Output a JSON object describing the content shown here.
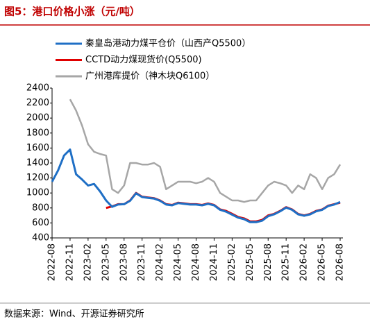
{
  "chart_data": {
    "type": "line",
    "title": "图5：港口价格小涨（元/吨）",
    "source": "数据来源：Wind、开源证券研究所",
    "categories": [
      "2022-08",
      null,
      null,
      "2022-11",
      null,
      null,
      "2023-02",
      null,
      null,
      "2023-05",
      null,
      null,
      "2023-08",
      null,
      null,
      "2023-11",
      null,
      null,
      "2024-02",
      null,
      null,
      "2024-05",
      null,
      null,
      "2024-08",
      null,
      null,
      "2024-11",
      null,
      null,
      "2025-02",
      null,
      null,
      "2025-05",
      null,
      null,
      "2025-08",
      null,
      null,
      "2025-11",
      null,
      null,
      "2026-02",
      null,
      null,
      "2026-05",
      null,
      null,
      "2026-08"
    ],
    "series": [
      {
        "name": "广州港库提价（神木块Q6100）",
        "color": "#a6a6a6",
        "values": [
          null,
          null,
          null,
          2250,
          2100,
          1900,
          1650,
          1550,
          1520,
          1500,
          1050,
          1000,
          1100,
          1400,
          1400,
          1380,
          1380,
          1400,
          1350,
          1050,
          1100,
          1150,
          1150,
          1150,
          1130,
          1150,
          1200,
          1150,
          1000,
          950,
          900,
          900,
          880,
          900,
          900,
          1000,
          1100,
          1150,
          1130,
          1100,
          1000,
          1100,
          1050,
          1250,
          1200,
          1050,
          1200,
          1250,
          1380
        ]
      },
      {
        "name": "CCTD动力煤现货价(Q5500)",
        "color": "#e00000",
        "values": [
          null,
          null,
          null,
          null,
          null,
          null,
          null,
          null,
          null,
          800,
          820,
          850,
          850,
          900,
          1000,
          950,
          940,
          930,
          900,
          850,
          840,
          870,
          860,
          850,
          850,
          840,
          860,
          840,
          780,
          760,
          720,
          680,
          660,
          620,
          620,
          640,
          700,
          720,
          760,
          810,
          780,
          720,
          700,
          720,
          760,
          780,
          830,
          850,
          870
        ]
      },
      {
        "name": "秦皇岛港动力煤平仓价（山西产Q5500）",
        "color": "#1f6fc5",
        "values": [
          1150,
          1300,
          1500,
          1580,
          1250,
          1180,
          1100,
          1120,
          1020,
          900,
          815,
          845,
          850,
          895,
          995,
          945,
          935,
          925,
          895,
          845,
          835,
          865,
          855,
          845,
          845,
          835,
          855,
          835,
          775,
          750,
          710,
          670,
          650,
          610,
          610,
          630,
          690,
          715,
          755,
          805,
          775,
          715,
          695,
          715,
          755,
          775,
          825,
          845,
          880
        ]
      }
    ],
    "ylim": [
      400,
      2400
    ],
    "yticks": [
      400,
      600,
      800,
      1000,
      1200,
      1400,
      1600,
      1800,
      2000,
      2200,
      2400
    ]
  }
}
